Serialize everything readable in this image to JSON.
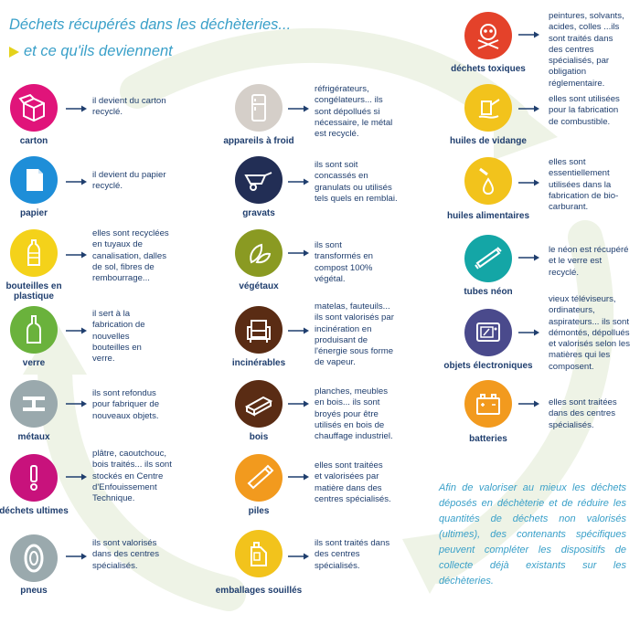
{
  "header": {
    "title": "Déchets récupérés dans les déchèteries...",
    "subtitle": "et ce qu'ils deviennent"
  },
  "colors": {
    "pink": "#e0147a",
    "blue": "#1e8ed8",
    "yellow": "#f4d21a",
    "green": "#6ab23c",
    "grey": "#9aa9ad",
    "lightgrey": "#d5cfc9",
    "darknavy": "#222e55",
    "olive": "#8a9a22",
    "brown": "#5a2c14",
    "orange": "#f29a1e",
    "red": "#e4422a",
    "gold": "#f2c31c",
    "teal": "#14a6a6",
    "purple": "#4a4a8c"
  },
  "column1": [
    {
      "label": "carton",
      "icon": "carton-box-icon",
      "desc": "il devient du carton recyclé."
    },
    {
      "label": "papier",
      "icon": "paper-sheet-icon",
      "desc": "il devient du papier recyclé."
    },
    {
      "label": "bouteilles en plastique",
      "icon": "plastic-bottle-icon",
      "desc": "elles sont recyclées en tuyaux de canalisation, dalles de sol, fibres de rembourrage..."
    },
    {
      "label": "verre",
      "icon": "glass-bottle-icon",
      "desc": "il sert à la fabrication de nouvelles bouteilles en verre."
    },
    {
      "label": "métaux",
      "icon": "metal-beam-icon",
      "desc": "ils sont refondus pour fabriquer de nouveaux objets."
    },
    {
      "label": "déchets ultimes",
      "icon": "exclamation-icon",
      "desc": "plâtre, caoutchouc, bois traités... ils sont stockés en Centre d'Enfouissement Technique."
    },
    {
      "label": "pneus",
      "icon": "tire-icon",
      "desc": "ils sont valorisés dans des centres spécialisés."
    }
  ],
  "column2": [
    {
      "label": "appareils à froid",
      "icon": "refrigerator-icon",
      "desc": "réfrigérateurs, congélateurs... ils sont dépollués si nécessaire, le métal est recyclé."
    },
    {
      "label": "gravats",
      "icon": "wheelbarrow-icon",
      "desc": "ils sont soit concassés en granulats ou utilisés tels quels en remblai."
    },
    {
      "label": "végétaux",
      "icon": "leaves-icon",
      "desc": "ils sont transformés en compost 100% végétal."
    },
    {
      "label": "incinérables",
      "icon": "armchair-icon",
      "desc": "matelas, fauteuils... ils sont valorisés par incinération en produisant de l'énergie sous forme de vapeur."
    },
    {
      "label": "bois",
      "icon": "wood-plank-icon",
      "desc": "planches, meubles en bois... ils sont broyés pour être utilisés en bois de chauffage industriel."
    },
    {
      "label": "piles",
      "icon": "battery-cell-icon",
      "desc": "elles sont traitées et valorisées par matière dans des centres spécialisés."
    },
    {
      "label": "emballages souillés",
      "icon": "jerrycan-icon",
      "desc": "ils sont traités dans des centres spécialisés."
    }
  ],
  "column3": [
    {
      "label": "déchets toxiques",
      "icon": "skull-crossbones-icon",
      "desc": "peintures, solvants, acides, colles ...ils sont traités dans des centres spécialisés, par obligation réglementaire."
    },
    {
      "label": "huiles de vidange",
      "icon": "oil-can-icon",
      "desc": "elles sont utilisées pour la fabrication de combustible."
    },
    {
      "label": "huiles alimentaires",
      "icon": "oil-drop-icon",
      "desc": "elles sont essentiellement utilisées dans la fabrication de bio-carburant."
    },
    {
      "label": "tubes néon",
      "icon": "neon-tube-icon",
      "desc": "le néon est récupéré et le verre est recyclé."
    },
    {
      "label": "objets électroniques",
      "icon": "tv-screen-icon",
      "desc": "vieux téléviseurs, ordinateurs, aspirateurs... ils sont démontés, dépollués et valorisés selon les matières qui les composent."
    },
    {
      "label": "batteries",
      "icon": "car-battery-icon",
      "desc": "elles sont traitées dans des centres spécialisés."
    }
  ],
  "footer": {
    "text": "Afin de valoriser au mieux les déchets déposés en déchèterie et de réduire les quantités de déchets non valorisés (ultimes), des contenants spécifiques peuvent compléter les dispositifs de collecte déjà existants sur les déchèteries."
  }
}
